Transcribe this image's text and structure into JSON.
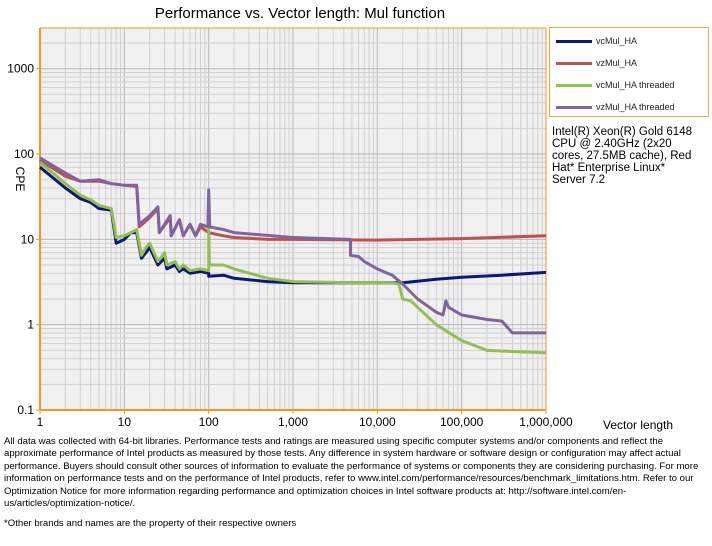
{
  "chart_data": {
    "type": "line",
    "title": "Performance vs. Vector length: Mul function",
    "xlabel": "Vector length",
    "ylabel": "CPE",
    "xscale": "log",
    "yscale": "log",
    "xlim": [
      1,
      1000000
    ],
    "ylim": [
      0.1,
      3000
    ],
    "xticks": [
      {
        "v": 1,
        "label": "1"
      },
      {
        "v": 10,
        "label": "10"
      },
      {
        "v": 100,
        "label": "100"
      },
      {
        "v": 1000,
        "label": "1,000"
      },
      {
        "v": 10000,
        "label": "10,000"
      },
      {
        "v": 100000,
        "label": "100,000"
      },
      {
        "v": 1000000,
        "label": "1,000,000"
      }
    ],
    "yticks": [
      {
        "v": 0.1,
        "label": "0.1"
      },
      {
        "v": 1,
        "label": "1"
      },
      {
        "v": 10,
        "label": "10"
      },
      {
        "v": 100,
        "label": "100"
      },
      {
        "v": 1000,
        "label": "1000"
      }
    ],
    "grid": true,
    "legend_position": "top-right",
    "series": [
      {
        "name": "vcMul_HA",
        "color": "#0a1a7a",
        "points": [
          [
            1,
            70
          ],
          [
            2,
            40
          ],
          [
            3,
            30
          ],
          [
            4,
            27
          ],
          [
            5,
            23
          ],
          [
            7,
            22
          ],
          [
            8,
            9
          ],
          [
            10,
            10
          ],
          [
            12,
            12
          ],
          [
            14,
            12
          ],
          [
            16,
            6
          ],
          [
            18,
            7
          ],
          [
            20,
            8
          ],
          [
            25,
            5
          ],
          [
            30,
            6
          ],
          [
            32,
            4.5
          ],
          [
            40,
            5
          ],
          [
            45,
            4.2
          ],
          [
            50,
            4.5
          ],
          [
            60,
            4
          ],
          [
            80,
            4.2
          ],
          [
            100,
            4
          ],
          [
            100,
            3.7
          ],
          [
            150,
            3.8
          ],
          [
            200,
            3.5
          ],
          [
            500,
            3.2
          ],
          [
            1000,
            3.1
          ],
          [
            5000,
            3.1
          ],
          [
            20000,
            3.1
          ],
          [
            50000,
            3.4
          ],
          [
            100000,
            3.6
          ],
          [
            300000,
            3.8
          ],
          [
            1000000,
            4.1
          ]
        ]
      },
      {
        "name": "vzMul_HA",
        "color": "#c0504d",
        "points": [
          [
            1,
            85
          ],
          [
            2,
            55
          ],
          [
            3,
            48
          ],
          [
            5,
            48
          ],
          [
            7,
            45
          ],
          [
            10,
            43
          ],
          [
            14,
            42
          ],
          [
            15,
            14
          ],
          [
            20,
            18
          ],
          [
            25,
            23
          ],
          [
            26,
            12
          ],
          [
            35,
            18
          ],
          [
            36,
            11
          ],
          [
            45,
            17
          ],
          [
            50,
            11
          ],
          [
            60,
            15
          ],
          [
            70,
            11
          ],
          [
            80,
            14
          ],
          [
            100,
            12
          ],
          [
            150,
            11
          ],
          [
            200,
            10.5
          ],
          [
            500,
            10
          ],
          [
            1000,
            10
          ],
          [
            10000,
            9.8
          ],
          [
            100000,
            10.2
          ],
          [
            1000000,
            11
          ]
        ]
      },
      {
        "name": "vcMul_HA threaded",
        "color": "#92c050",
        "points": [
          [
            1,
            80
          ],
          [
            2,
            45
          ],
          [
            3,
            33
          ],
          [
            4,
            29
          ],
          [
            5,
            25
          ],
          [
            7,
            23
          ],
          [
            8,
            10.5
          ],
          [
            10,
            11
          ],
          [
            12,
            12
          ],
          [
            14,
            13
          ],
          [
            16,
            6.5
          ],
          [
            18,
            8
          ],
          [
            20,
            9
          ],
          [
            25,
            5.5
          ],
          [
            30,
            7
          ],
          [
            32,
            5
          ],
          [
            40,
            5.5
          ],
          [
            45,
            4.5
          ],
          [
            50,
            5
          ],
          [
            60,
            4.3
          ],
          [
            80,
            4.5
          ],
          [
            100,
            4.3
          ],
          [
            100,
            13
          ],
          [
            102,
            5
          ],
          [
            150,
            5
          ],
          [
            200,
            4.5
          ],
          [
            500,
            3.5
          ],
          [
            1000,
            3.2
          ],
          [
            5000,
            3.1
          ],
          [
            15000,
            3.1
          ],
          [
            18000,
            3
          ],
          [
            20000,
            2
          ],
          [
            25000,
            1.9
          ],
          [
            30000,
            1.6
          ],
          [
            50000,
            1
          ],
          [
            100000,
            0.65
          ],
          [
            200000,
            0.5
          ],
          [
            500000,
            0.48
          ],
          [
            1000000,
            0.47
          ]
        ]
      },
      {
        "name": "vzMul_HA threaded",
        "color": "#8064a2",
        "points": [
          [
            1,
            90
          ],
          [
            2,
            60
          ],
          [
            3,
            48
          ],
          [
            5,
            50
          ],
          [
            7,
            45
          ],
          [
            10,
            43
          ],
          [
            14,
            43
          ],
          [
            15,
            15
          ],
          [
            20,
            19
          ],
          [
            25,
            24
          ],
          [
            26,
            12
          ],
          [
            35,
            19
          ],
          [
            36,
            11
          ],
          [
            45,
            17
          ],
          [
            50,
            11
          ],
          [
            60,
            15
          ],
          [
            70,
            11
          ],
          [
            80,
            15
          ],
          [
            98,
            14
          ],
          [
            100,
            38
          ],
          [
            103,
            14
          ],
          [
            150,
            13
          ],
          [
            200,
            12
          ],
          [
            1000,
            10.5
          ],
          [
            4800,
            10
          ],
          [
            4800,
            6.5
          ],
          [
            6000,
            6.3
          ],
          [
            7000,
            5.5
          ],
          [
            10000,
            4.5
          ],
          [
            15000,
            3.8
          ],
          [
            20000,
            3
          ],
          [
            30000,
            2
          ],
          [
            50000,
            1.4
          ],
          [
            60000,
            1.3
          ],
          [
            65000,
            1.9
          ],
          [
            70000,
            1.6
          ],
          [
            100000,
            1.3
          ],
          [
            200000,
            1.15
          ],
          [
            300000,
            1.1
          ],
          [
            400000,
            0.8
          ],
          [
            1000000,
            0.8
          ]
        ]
      }
    ],
    "annotation": "Intel(R) Xeon(R) Gold 6148 CPU @ 2.40GHz (2x20 cores, 27.5MB cache), Red Hat* Enterprise Linux* Server 7.2"
  },
  "disclaimer": "All data was collected with 64-bit libraries. Performance tests and ratings are measured using specific computer systems and/or components and reflect the approximate performance of Intel products as measured by those tests. Any difference in system hardware or software design or configuration may affect actual performance. Buyers should consult other sources of information to evaluate the performance of systems or components they are considering purchasing. For more information on performance tests and on the performance of Intel products, refer to www.intel.com/performance/resources/benchmark_limitations.htm. Refer to our Optimization Notice for more information regarding performance and optimization choices in Intel software products at: http://software.intel.com/en-us/articles/optimization-notice/.",
  "footnote": "*Other brands and names are the property of their respective owners"
}
